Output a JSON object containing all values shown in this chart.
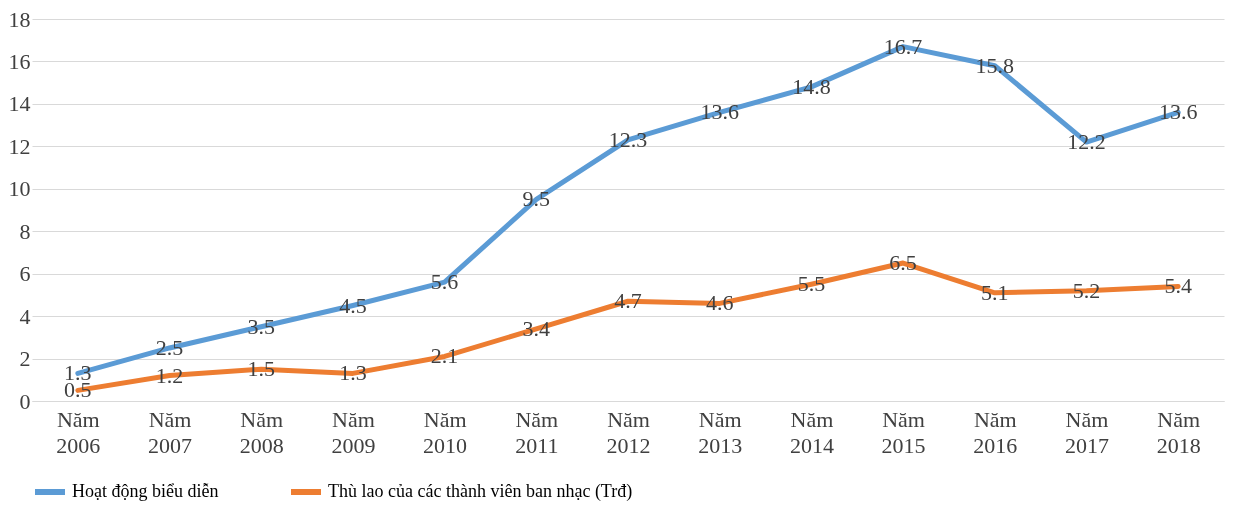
{
  "chart_data": {
    "type": "line",
    "categories": [
      "Năm 2006",
      "Năm 2007",
      "Năm 2008",
      "Năm 2009",
      "Năm 2010",
      "Năm 2011",
      "Năm 2012",
      "Năm 2013",
      "Năm 2014",
      "Năm 2015",
      "Năm 2016",
      "Năm 2017",
      "Năm 2018"
    ],
    "series": [
      {
        "name": "Hoạt động biểu diễn",
        "color": "#5b9bd5",
        "values": [
          1.3,
          2.5,
          3.5,
          4.5,
          5.6,
          9.5,
          12.3,
          13.6,
          14.8,
          16.7,
          15.8,
          12.2,
          13.6
        ]
      },
      {
        "name": "Thù lao của các thành viên ban nhạc (Trđ)",
        "color": "#ed7d31",
        "values": [
          0.5,
          1.2,
          1.5,
          1.3,
          2.1,
          3.4,
          4.7,
          4.6,
          5.5,
          6.5,
          5.1,
          5.2,
          5.4
        ]
      }
    ],
    "ylim": [
      0,
      18
    ],
    "yticks": [
      0,
      2,
      4,
      6,
      8,
      10,
      12,
      14,
      16,
      18
    ],
    "grid": "y",
    "legend": "bottom",
    "data_labels": true,
    "marker": "none",
    "line_style": "solid"
  }
}
